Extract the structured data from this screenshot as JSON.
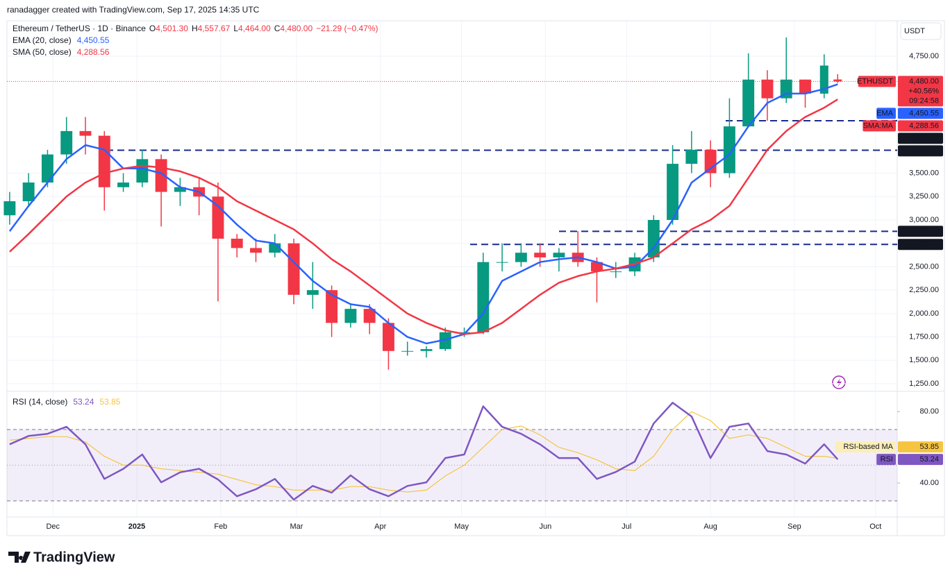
{
  "header": {
    "credit": "ranadagger created with TradingView.com, Sep 17, 2025 14:35 UTC",
    "brand": "TradingView"
  },
  "chart_data": [
    {
      "type": "candlestick",
      "title": "Ethereum / TetherUS · 1D · Binance",
      "ohlc_legend": [
        {
          "label": "O",
          "text": "4,501.30"
        },
        {
          "label": "H",
          "text": "4,557.67"
        },
        {
          "label": "L",
          "text": "4,464.00"
        },
        {
          "label": "C",
          "text": "4,480.00"
        }
      ],
      "change": "−21.29 (−0.47%)",
      "currency": "USDT",
      "up_color": "#089981",
      "down_color": "#f23645",
      "x": [
        -16,
        -9,
        -2,
        5,
        12,
        19,
        26,
        33,
        40,
        47,
        54,
        61,
        68,
        75,
        82,
        89,
        96,
        103,
        110,
        117,
        124,
        131,
        138,
        145,
        152,
        159,
        166,
        173,
        180,
        187,
        194,
        201,
        208,
        215,
        222,
        229,
        236,
        243,
        250,
        257,
        264,
        271,
        278,
        285,
        290
      ],
      "open": [
        3050,
        3200,
        3400,
        3700,
        3950,
        3900,
        3350,
        3400,
        3650,
        3300,
        3350,
        3250,
        2800,
        2700,
        2650,
        2750,
        2200,
        2250,
        1900,
        2050,
        1900,
        1600,
        1600,
        1620,
        1800,
        1800,
        2550,
        2550,
        2650,
        2600,
        2650,
        2550,
        2450,
        2450,
        2600,
        3000,
        3600,
        3750,
        3500,
        4000,
        4500,
        4300,
        4500,
        4350,
        4501.3
      ],
      "high": [
        3300,
        3500,
        3750,
        4100,
        4100,
        3950,
        3500,
        3750,
        3700,
        3450,
        3450,
        3400,
        2850,
        2800,
        2850,
        2800,
        2550,
        2300,
        2100,
        2100,
        1950,
        1700,
        1650,
        1850,
        1850,
        2650,
        2750,
        2750,
        2750,
        2700,
        2880,
        2600,
        2550,
        2650,
        3050,
        3800,
        3950,
        3850,
        4300,
        4780,
        4600,
        4950,
        4500,
        4770,
        4557.67
      ],
      "low": [
        2950,
        3150,
        3350,
        3600,
        3700,
        3100,
        3300,
        3350,
        2930,
        3150,
        3050,
        2130,
        2600,
        2550,
        2600,
        2100,
        2050,
        1750,
        1850,
        1780,
        1400,
        1550,
        1530,
        1600,
        1750,
        1780,
        2450,
        2500,
        2500,
        2450,
        2500,
        2120,
        2380,
        2400,
        2550,
        2950,
        3500,
        3350,
        3450,
        4000,
        4060,
        4250,
        4200,
        4300,
        4464
      ],
      "close": [
        3200,
        3400,
        3700,
        3950,
        3900,
        3350,
        3400,
        3650,
        3300,
        3350,
        3250,
        2800,
        2700,
        2650,
        2750,
        2200,
        2250,
        1900,
        2050,
        1900,
        1600,
        1600,
        1620,
        1800,
        1800,
        2550,
        2550,
        2650,
        2600,
        2650,
        2550,
        2450,
        2450,
        2600,
        3000,
        3600,
        3750,
        3500,
        4000,
        4500,
        4300,
        4500,
        4350,
        4650,
        4480
      ],
      "series": [
        {
          "name": "EMA (20, close)",
          "legend_value": "4,450.55",
          "tag": "EMA",
          "color": "#2962ff",
          "values": [
            2880,
            3150,
            3400,
            3650,
            3800,
            3750,
            3550,
            3550,
            3500,
            3350,
            3300,
            3150,
            2950,
            2780,
            2750,
            2550,
            2350,
            2200,
            2100,
            2070,
            1900,
            1750,
            1680,
            1720,
            1780,
            2000,
            2350,
            2450,
            2550,
            2580,
            2600,
            2550,
            2480,
            2500,
            2700,
            3000,
            3400,
            3550,
            3700,
            4000,
            4250,
            4350,
            4350,
            4400,
            4450.55
          ]
        },
        {
          "name": "SMA (50, close)",
          "legend_value": "4,288.56",
          "tag": "SMA:MA",
          "color": "#f23645",
          "values": [
            2660,
            2850,
            3050,
            3250,
            3400,
            3500,
            3550,
            3580,
            3560,
            3520,
            3450,
            3350,
            3200,
            3100,
            3000,
            2900,
            2750,
            2580,
            2450,
            2300,
            2150,
            2000,
            1900,
            1820,
            1780,
            1800,
            1900,
            2050,
            2200,
            2330,
            2400,
            2450,
            2480,
            2530,
            2600,
            2750,
            2900,
            3000,
            3150,
            3450,
            3750,
            3950,
            4100,
            4200,
            4288.56
          ]
        }
      ],
      "last_price": {
        "tag": "ETHUSDT",
        "label": "4,480.00",
        "change": "+40.56%",
        "countdown": "09:24:58"
      },
      "levels": [
        {
          "value": 4060,
          "label": "4,060.00"
        },
        {
          "value": 3745,
          "label": "3,745.00"
        },
        {
          "value": 2879,
          "label": "2,879.00"
        },
        {
          "value": 2738.5,
          "label": "2,738.50"
        }
      ],
      "level_color": "#1a2a8c",
      "xlim": [
        -17,
        312
      ],
      "xticks": [
        {
          "value": 0,
          "label": "Dec"
        },
        {
          "value": 31,
          "label": "2025"
        },
        {
          "value": 62,
          "label": "Feb"
        },
        {
          "value": 90,
          "label": "Mar"
        },
        {
          "value": 121,
          "label": "Apr"
        },
        {
          "value": 151,
          "label": "May"
        },
        {
          "value": 182,
          "label": "Jun"
        },
        {
          "value": 212,
          "label": "Jul"
        },
        {
          "value": 243,
          "label": "Aug"
        },
        {
          "value": 274,
          "label": "Sep"
        },
        {
          "value": 304,
          "label": "Oct"
        }
      ],
      "ylim": [
        1176,
        5128
      ],
      "yticks": [
        {
          "value": 1250,
          "label": "1,250.00"
        },
        {
          "value": 1500,
          "label": "1,500.00"
        },
        {
          "value": 1750,
          "label": "1,750.00"
        },
        {
          "value": 2000,
          "label": "2,000.00"
        },
        {
          "value": 2250,
          "label": "2,250.00"
        },
        {
          "value": 2500,
          "label": "2,500.00"
        },
        {
          "value": 2750,
          "label": "2,750.00"
        },
        {
          "value": 3000,
          "label": "3,000.00"
        },
        {
          "value": 3250,
          "label": "3,250.00"
        },
        {
          "value": 3500,
          "label": "3,500.00"
        },
        {
          "value": 4750,
          "label": "4,750.00"
        }
      ],
      "grid": true
    },
    {
      "type": "line",
      "title": "RSI (14, close)",
      "x": [
        -16,
        -9,
        -2,
        5,
        12,
        19,
        26,
        33,
        40,
        47,
        54,
        61,
        68,
        75,
        82,
        89,
        96,
        103,
        110,
        117,
        124,
        131,
        138,
        145,
        152,
        159,
        166,
        173,
        180,
        187,
        194,
        201,
        208,
        215,
        222,
        229,
        236,
        243,
        250,
        257,
        264,
        271,
        278,
        285,
        290
      ],
      "series": [
        {
          "name": "RSI",
          "legend_value": "53.24",
          "color": "#7e57c2",
          "values": [
            61.7,
            66.4,
            67.6,
            71.5,
            61.7,
            42.3,
            48,
            56,
            40.4,
            46,
            48,
            42,
            32.6,
            36.5,
            42.3,
            30.7,
            38.4,
            34.6,
            44.3,
            36.5,
            32.6,
            38.4,
            40.4,
            54,
            56,
            83,
            71.5,
            67.6,
            61.7,
            54,
            54,
            42.3,
            46.2,
            52,
            73.4,
            85,
            77.3,
            54,
            71.5,
            73.4,
            57.9,
            56,
            50.9,
            61.7,
            53.24
          ]
        },
        {
          "name": "RSI-based MA",
          "legend_value": "53.85",
          "color": "#f5c542",
          "values": [
            64,
            65,
            66,
            66,
            63,
            55,
            50,
            50,
            48,
            47,
            46,
            45,
            42,
            39,
            38,
            36,
            36,
            36,
            38,
            38,
            36,
            35,
            36,
            44,
            50,
            60,
            70,
            72,
            67,
            60,
            57,
            53,
            48,
            47,
            55,
            70,
            80,
            75,
            65,
            67,
            65,
            60,
            55,
            55,
            53.85
          ]
        }
      ],
      "band": [
        30,
        70
      ],
      "midline": 50,
      "xlim": [
        -17,
        312
      ],
      "ylim": [
        21,
        91
      ],
      "yticks": [
        {
          "value": 40,
          "label": "40.00"
        },
        {
          "value": 80,
          "label": "80.00"
        }
      ]
    }
  ]
}
